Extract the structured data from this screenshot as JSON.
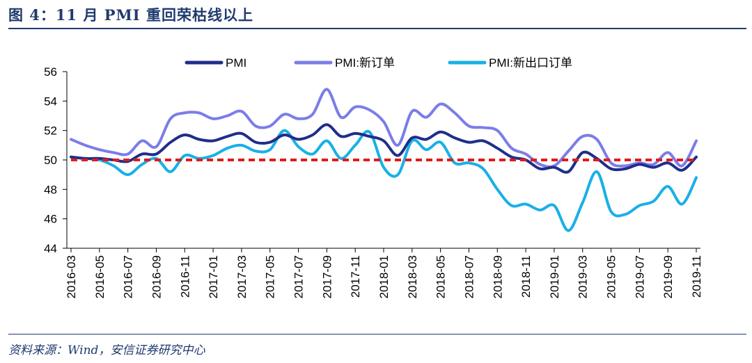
{
  "header": {
    "title": "图 4：11 月 PMI 重回荣枯线以上"
  },
  "footer": {
    "source": "资料来源：Wind，安信证券研究中心"
  },
  "chart_data": {
    "type": "line",
    "title": "图 4：11 月 PMI 重回荣枯线以上",
    "xlabel": "",
    "ylabel": "",
    "ylim": [
      44,
      56
    ],
    "yticks": [
      44,
      46,
      48,
      50,
      52,
      54,
      56
    ],
    "x": [
      "2016-03",
      "2016-04",
      "2016-05",
      "2016-06",
      "2016-07",
      "2016-08",
      "2016-09",
      "2016-10",
      "2016-11",
      "2016-12",
      "2017-01",
      "2017-02",
      "2017-03",
      "2017-04",
      "2017-05",
      "2017-06",
      "2017-07",
      "2017-08",
      "2017-09",
      "2017-10",
      "2017-11",
      "2017-12",
      "2018-01",
      "2018-02",
      "2018-03",
      "2018-04",
      "2018-05",
      "2018-06",
      "2018-07",
      "2018-08",
      "2018-09",
      "2018-10",
      "2018-11",
      "2018-12",
      "2019-01",
      "2019-02",
      "2019-03",
      "2019-04",
      "2019-05",
      "2019-06",
      "2019-07",
      "2019-08",
      "2019-09",
      "2019-10",
      "2019-11"
    ],
    "xtick_labels": [
      "2016-03",
      "2016-05",
      "2016-07",
      "2016-09",
      "2016-11",
      "2017-01",
      "2017-03",
      "2017-05",
      "2017-07",
      "2017-09",
      "2017-11",
      "2018-01",
      "2018-03",
      "2018-05",
      "2018-07",
      "2018-09",
      "2018-11",
      "2019-01",
      "2019-03",
      "2019-05",
      "2019-07",
      "2019-09",
      "2019-11"
    ],
    "series": [
      {
        "name": "PMI",
        "color": "#1f2e8a",
        "values": [
          50.2,
          50.1,
          50.1,
          50.0,
          49.9,
          50.4,
          50.4,
          51.2,
          51.7,
          51.4,
          51.3,
          51.6,
          51.8,
          51.2,
          51.2,
          51.7,
          51.4,
          51.7,
          52.4,
          51.6,
          51.8,
          51.6,
          51.3,
          50.3,
          51.5,
          51.4,
          51.9,
          51.5,
          51.2,
          51.3,
          50.8,
          50.2,
          50.0,
          49.4,
          49.5,
          49.2,
          50.5,
          50.1,
          49.4,
          49.4,
          49.7,
          49.5,
          49.8,
          49.3,
          50.2
        ]
      },
      {
        "name": "PMI:新订单",
        "color": "#7b7de8",
        "values": [
          51.4,
          51.0,
          50.7,
          50.5,
          50.4,
          51.3,
          50.9,
          52.8,
          53.2,
          53.2,
          52.8,
          53.0,
          53.3,
          52.3,
          52.3,
          53.1,
          52.8,
          53.1,
          54.8,
          52.9,
          53.6,
          53.4,
          52.6,
          51.0,
          53.3,
          52.9,
          53.8,
          53.2,
          52.3,
          52.2,
          52.0,
          50.8,
          50.4,
          49.7,
          49.6,
          50.6,
          51.6,
          51.4,
          49.8,
          49.6,
          49.8,
          49.7,
          50.5,
          49.6,
          51.3
        ]
      },
      {
        "name": "PMI:新出口订单",
        "color": "#19b0e6",
        "values": [
          50.2,
          50.1,
          50.0,
          49.6,
          49.0,
          49.7,
          50.1,
          49.2,
          50.3,
          50.1,
          50.3,
          50.8,
          51.0,
          50.6,
          50.7,
          52.0,
          50.9,
          50.4,
          51.3,
          50.1,
          51.0,
          51.9,
          49.5,
          49.0,
          51.3,
          50.7,
          51.2,
          49.8,
          49.8,
          49.4,
          48.0,
          46.9,
          47.0,
          46.6,
          46.9,
          45.2,
          47.1,
          49.2,
          46.5,
          46.3,
          46.9,
          47.2,
          48.2,
          47.0,
          48.8
        ]
      },
      {
        "name": "荣枯线",
        "color": "#e01b1b",
        "style": "dashed",
        "values": [
          50,
          50,
          50,
          50,
          50,
          50,
          50,
          50,
          50,
          50,
          50,
          50,
          50,
          50,
          50,
          50,
          50,
          50,
          50,
          50,
          50,
          50,
          50,
          50,
          50,
          50,
          50,
          50,
          50,
          50,
          50,
          50,
          50,
          50,
          50,
          50,
          50,
          50,
          50,
          50,
          50,
          50,
          50,
          50,
          50
        ]
      }
    ],
    "legend": {
      "placement": "top",
      "entries": [
        "PMI",
        "PMI:新订单",
        "PMI:新出口订单"
      ]
    },
    "grid": false
  }
}
